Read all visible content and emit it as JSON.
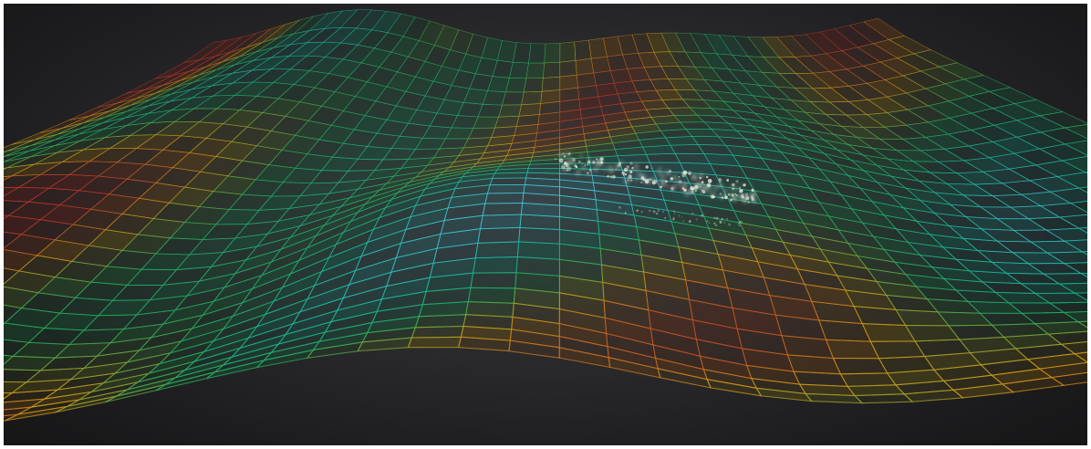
{
  "scene": {
    "subject": "3d-wireframe-terrain",
    "background_color": "#2b2b2d",
    "palette": {
      "wire_red": "#c0392b",
      "wire_orange": "#d4a017",
      "wire_green": "#27ae60",
      "wire_teal": "#1abc9c",
      "wire_cyan": "#48c9e0",
      "highlight_points": "#e8f0e0"
    }
  }
}
